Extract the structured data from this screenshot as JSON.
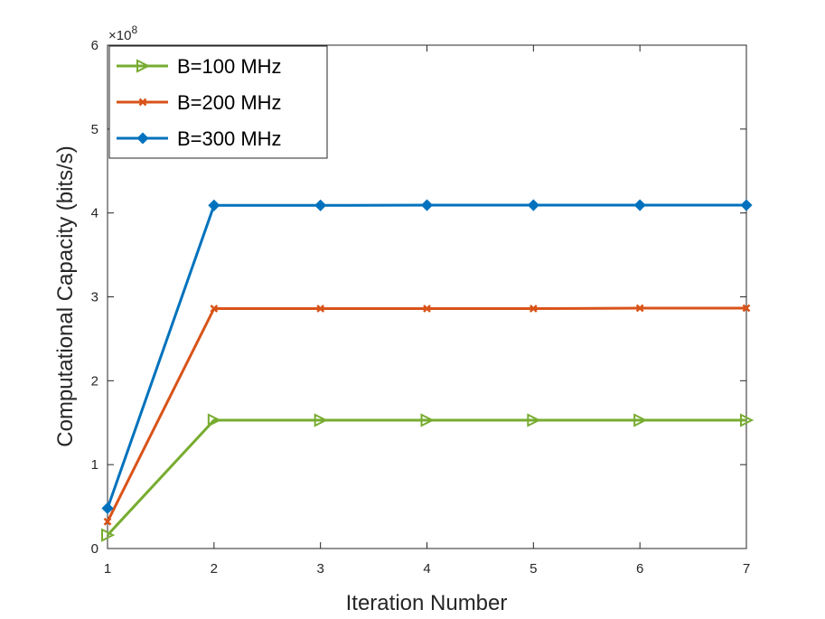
{
  "chart_data": {
    "type": "line",
    "title": "",
    "xlabel": "Iteration Number",
    "ylabel": "Computational Capacity (bits/s)",
    "y_exponent_prefix": "×10",
    "y_exponent_power": "8",
    "x": [
      1,
      2,
      3,
      4,
      5,
      6,
      7
    ],
    "xlim": [
      1,
      7
    ],
    "ylim": [
      0,
      6
    ],
    "xticks": [
      "1",
      "2",
      "3",
      "4",
      "5",
      "6",
      "7"
    ],
    "yticks": [
      "0",
      "1",
      "2",
      "3",
      "4",
      "5",
      "6"
    ],
    "grid": false,
    "legend_position": "top-left",
    "series": [
      {
        "name": "B=100 MHz",
        "color": "#77AC30",
        "marker": "triangle-right",
        "values": [
          0.16,
          1.53,
          1.53,
          1.53,
          1.53,
          1.53,
          1.53
        ]
      },
      {
        "name": "B=200 MHz",
        "color": "#D95319",
        "marker": "x",
        "values": [
          0.32,
          2.86,
          2.86,
          2.86,
          2.86,
          2.865,
          2.865
        ]
      },
      {
        "name": "B=300 MHz",
        "color": "#0072BD",
        "marker": "diamond-filled",
        "values": [
          0.48,
          4.09,
          4.09,
          4.093,
          4.093,
          4.093,
          4.093
        ]
      }
    ]
  }
}
